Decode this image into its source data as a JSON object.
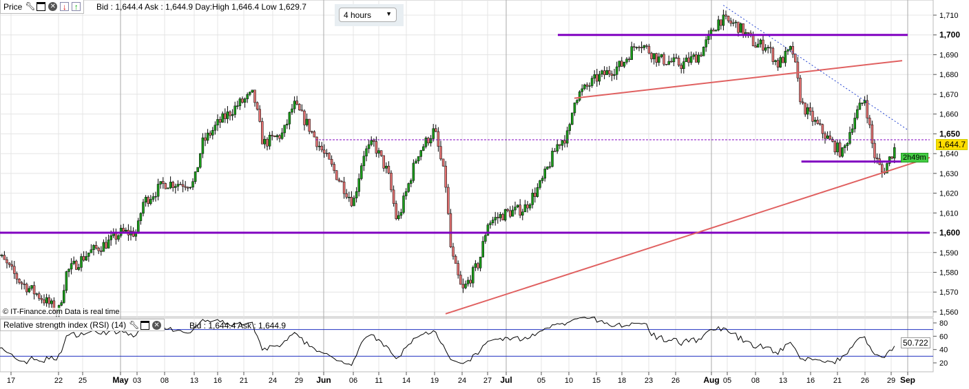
{
  "header": {
    "title": "Price",
    "quote": "Bid : 1,644.4 Ask : 1,644.9 Day:High 1,646.4 Low 1,629.7"
  },
  "timeframe": {
    "value": "4 hours"
  },
  "copyright": "© IT-Finance.com Data is real time",
  "rsi": {
    "title": "Relative strength index (RSI) (14)",
    "quote": "Bid : 1,644.4 Ask : 1,644.9",
    "value": "50.722",
    "levels": [
      70,
      30
    ],
    "ticks": [
      "80",
      "60",
      "40",
      "20"
    ]
  },
  "price_tags": {
    "last": "1,644.7",
    "countdown": "2h49m"
  },
  "colors": {
    "up": "#1a9a1a",
    "down": "#e07070",
    "hline": "#8000c0",
    "trend": "#e06060",
    "dotted": "#2040d0",
    "last_bg": "#ffdd00",
    "count_bg": "#44cc44"
  },
  "chart_data": {
    "type": "candlestick",
    "ylim": [
      1557,
      1713
    ],
    "yticks": [
      "1,710",
      "1,700",
      "1,690",
      "1,680",
      "1,670",
      "1,660",
      "1,650",
      "1,640",
      "1,630",
      "1,620",
      "1,610",
      "1,600",
      "1,590",
      "1,580",
      "1,570",
      "1,560"
    ],
    "xticks": [
      {
        "label": "17",
        "date": "04-17"
      },
      {
        "label": "22",
        "date": "04-22"
      },
      {
        "label": "25",
        "date": "04-25"
      },
      {
        "label": "May",
        "date": "05-01",
        "bold": true
      },
      {
        "label": "03",
        "date": "05-03"
      },
      {
        "label": "08",
        "date": "05-08"
      },
      {
        "label": "13",
        "date": "05-13"
      },
      {
        "label": "16",
        "date": "05-16"
      },
      {
        "label": "21",
        "date": "05-21"
      },
      {
        "label": "24",
        "date": "05-24"
      },
      {
        "label": "29",
        "date": "05-29"
      },
      {
        "label": "Jun",
        "date": "06-01",
        "bold": true
      },
      {
        "label": "06",
        "date": "06-06"
      },
      {
        "label": "11",
        "date": "06-11"
      },
      {
        "label": "14",
        "date": "06-14"
      },
      {
        "label": "19",
        "date": "06-19"
      },
      {
        "label": "24",
        "date": "06-24"
      },
      {
        "label": "27",
        "date": "06-27"
      },
      {
        "label": "Jul",
        "date": "07-01",
        "bold": true
      },
      {
        "label": "05",
        "date": "07-05"
      },
      {
        "label": "10",
        "date": "07-10"
      },
      {
        "label": "15",
        "date": "07-15"
      },
      {
        "label": "18",
        "date": "07-18"
      },
      {
        "label": "23",
        "date": "07-23"
      },
      {
        "label": "26",
        "date": "07-26"
      },
      {
        "label": "Aug",
        "date": "08-01",
        "bold": true
      },
      {
        "label": "05",
        "date": "08-05"
      },
      {
        "label": "08",
        "date": "08-08"
      },
      {
        "label": "13",
        "date": "08-13"
      },
      {
        "label": "16",
        "date": "08-16"
      },
      {
        "label": "21",
        "date": "08-21"
      },
      {
        "label": "26",
        "date": "08-26"
      },
      {
        "label": "29",
        "date": "08-29"
      },
      {
        "label": "Sep",
        "date": "09-01",
        "bold": true
      }
    ],
    "price_path": [
      [
        "04-15",
        1593
      ],
      [
        "04-18",
        1575
      ],
      [
        "04-20",
        1568
      ],
      [
        "04-22",
        1560
      ],
      [
        "04-23",
        1580
      ],
      [
        "04-26",
        1590
      ],
      [
        "04-29",
        1595
      ],
      [
        "05-01",
        1600
      ],
      [
        "05-03",
        1600
      ],
      [
        "05-04",
        1615
      ],
      [
        "05-08",
        1625
      ],
      [
        "05-13",
        1625
      ],
      [
        "05-14",
        1645
      ],
      [
        "05-16",
        1655
      ],
      [
        "05-20",
        1665
      ],
      [
        "05-22",
        1670
      ],
      [
        "05-23",
        1645
      ],
      [
        "05-26",
        1650
      ],
      [
        "05-28",
        1665
      ],
      [
        "05-30",
        1655
      ],
      [
        "06-01",
        1640
      ],
      [
        "06-03",
        1630
      ],
      [
        "06-06",
        1615
      ],
      [
        "06-08",
        1640
      ],
      [
        "06-10",
        1645
      ],
      [
        "06-12",
        1630
      ],
      [
        "06-13",
        1605
      ],
      [
        "06-16",
        1640
      ],
      [
        "06-19",
        1652
      ],
      [
        "06-21",
        1625
      ],
      [
        "06-22",
        1590
      ],
      [
        "06-24",
        1570
      ],
      [
        "06-26",
        1585
      ],
      [
        "06-27",
        1605
      ],
      [
        "07-01",
        1610
      ],
      [
        "07-03",
        1612
      ],
      [
        "07-05",
        1625
      ],
      [
        "07-08",
        1645
      ],
      [
        "07-10",
        1650
      ],
      [
        "07-11",
        1668
      ],
      [
        "07-15",
        1678
      ],
      [
        "07-18",
        1685
      ],
      [
        "07-21",
        1697
      ],
      [
        "07-24",
        1688
      ],
      [
        "07-27",
        1685
      ],
      [
        "07-30",
        1690
      ],
      [
        "08-03",
        1708
      ],
      [
        "08-06",
        1705
      ],
      [
        "08-08",
        1695
      ],
      [
        "08-10",
        1695
      ],
      [
        "08-12",
        1685
      ],
      [
        "08-14",
        1693
      ],
      [
        "08-15",
        1665
      ],
      [
        "08-17",
        1655
      ],
      [
        "08-20",
        1645
      ],
      [
        "08-22",
        1640
      ],
      [
        "08-24",
        1658
      ],
      [
        "08-26",
        1668
      ],
      [
        "08-27",
        1640
      ],
      [
        "08-28",
        1630
      ],
      [
        "08-30",
        1645
      ]
    ],
    "annotations": [
      {
        "kind": "hline",
        "color": "hline",
        "price": 1700,
        "from": "07-08",
        "to": "09-01"
      },
      {
        "kind": "hline",
        "color": "hline",
        "price": 1600,
        "from": "04-13",
        "to": "09-05"
      },
      {
        "kind": "hline",
        "color": "hline",
        "price": 1636,
        "from": "08-15",
        "to": "08-31"
      },
      {
        "kind": "trend",
        "color": "trend",
        "p1": [
          "06-21",
          1559
        ],
        "p2": [
          "09-05",
          1638
        ]
      },
      {
        "kind": "trend",
        "color": "trend",
        "p1": [
          "07-11",
          1668
        ],
        "p2": [
          "08-31",
          1687
        ]
      },
      {
        "kind": "dotted",
        "color": "dotted",
        "p1": [
          "08-04",
          1715
        ],
        "p2": [
          "09-01",
          1652
        ]
      },
      {
        "kind": "dashed",
        "color": "hline",
        "price": 1647,
        "from": "05-31",
        "to": "09-05"
      }
    ]
  }
}
